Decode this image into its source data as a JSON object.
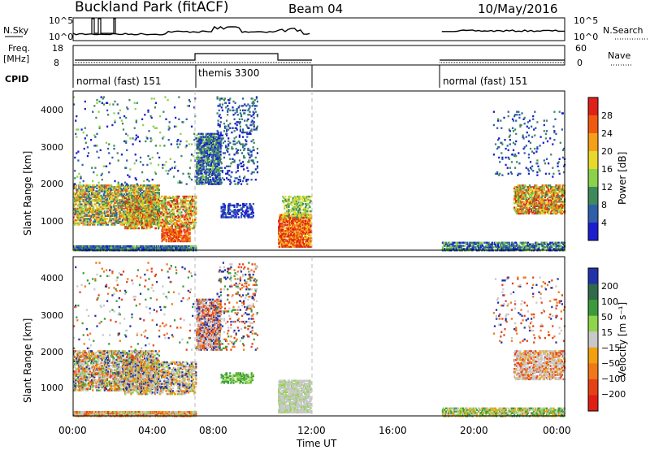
{
  "header": {
    "title": "Buckland Park (fitACF)",
    "beam": "Beam 04",
    "date": "10/May/2016"
  },
  "strips": {
    "nsky_label": "N.Sky",
    "nsky_ticks": [
      "10^5",
      "10^0"
    ],
    "nsearch_label": "N.Search",
    "nsearch_ticks": [
      "10^5",
      "10^0"
    ],
    "freq_label": "Freq.",
    "freq_unit": "[MHz]",
    "freq_ticks": [
      "18",
      "8"
    ],
    "nave_label": "Nave",
    "nave_ticks": [
      "60",
      "0"
    ],
    "cpid_label": "CPID",
    "cpid_segments": [
      {
        "name": "normal (fast) 151",
        "start_h": 0,
        "end_h": 6
      },
      {
        "name": "themis 3300",
        "start_h": 6,
        "end_h": 11.6
      },
      {
        "name": "normal (fast) 151",
        "start_h": 18,
        "end_h": 24
      }
    ]
  },
  "chart_data": [
    {
      "type": "heatmap",
      "title": "",
      "ylabel": "Slant Range [km]",
      "xlabel": "",
      "xlim_hours": [
        0,
        24
      ],
      "ylim_km": [
        180,
        4500
      ],
      "yticks": [
        "1000",
        "2000",
        "3000",
        "4000"
      ],
      "colorbar": {
        "label": "Power [dB]",
        "ticks": [
          "28",
          "24",
          "20",
          "16",
          "12",
          "8",
          "4"
        ],
        "colors": [
          "#e0201a",
          "#f05a10",
          "#f5a018",
          "#e8d82c",
          "#8ad24a",
          "#3e8a5c",
          "#2e5fa8",
          "#1c1cd0"
        ]
      },
      "data_gaps_hours": [
        [
          11.6,
          18
        ]
      ]
    },
    {
      "type": "heatmap",
      "title": "",
      "ylabel": "Slant Range [km]",
      "xlabel": "Time UT",
      "xlim_hours": [
        0,
        24
      ],
      "ylim_km": [
        180,
        4500
      ],
      "yticks": [
        "1000",
        "2000",
        "3000",
        "4000"
      ],
      "xticks": [
        "00:00",
        "04:00",
        "08:00",
        "12:00",
        "16:00",
        "20:00",
        "00:00"
      ],
      "colorbar": {
        "label": "Velocity [m s⁻¹]",
        "ticks": [
          "200",
          "100",
          "50",
          "15",
          "−15",
          "−50",
          "−100",
          "−200"
        ],
        "colors": [
          "#2233aa",
          "#2f6b4a",
          "#3c9a3c",
          "#8fd44a",
          "#c8c8c8",
          "#f2a010",
          "#f07818",
          "#e84016",
          "#e01e14"
        ]
      },
      "data_gaps_hours": [
        [
          11.6,
          18
        ]
      ]
    }
  ]
}
